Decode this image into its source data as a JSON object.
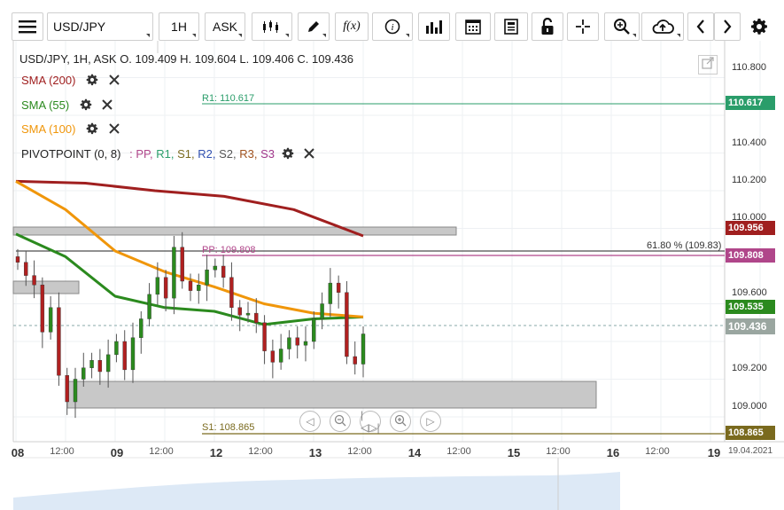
{
  "toolbar": {
    "symbol": "USD/JPY",
    "timeframe": "1H",
    "price_type": "ASK",
    "fx_label": "f(x)"
  },
  "ohlc_line": "USD/JPY, 1H, ASK   O. 109.409 H. 109.604 L. 109.406 C. 109.436",
  "indicators": {
    "sma200": {
      "label": "SMA (200)",
      "color": "#a01f1f"
    },
    "sma55": {
      "label": "SMA (55)",
      "color": "#2b8a1e"
    },
    "sma100": {
      "label": "SMA (100)",
      "color": "#f0960a"
    },
    "pivot": {
      "label": "PIVOTPOINT (0, 8)",
      "sep": ":",
      "pp": "PP,",
      "r1": "R1,",
      "s1": "S1,",
      "r2": "R2,",
      "s2": "S2,",
      "r3": "R3,",
      "s3": "S3"
    }
  },
  "levels": {
    "r1_label": "R1: 110.617",
    "pp_label": "PP: 109.808",
    "s1_label": "S1: 108.865",
    "fib_label": "61.80 % (109.83)"
  },
  "price_axis": {
    "ticks": [
      "110.800",
      "110.400",
      "110.200",
      "110.000",
      "109.600",
      "109.200",
      "109.000"
    ],
    "badges": {
      "r1": "110.617",
      "sma200": "109.956",
      "pp": "109.808",
      "sma55": "109.535",
      "last": "109.436",
      "s1": "108.865"
    }
  },
  "time_axis": {
    "labels": [
      "08",
      "12:00",
      "09",
      "12:00",
      "12",
      "12:00",
      "13",
      "12:00",
      "14",
      "12:00",
      "15",
      "12:00",
      "16",
      "12:00",
      "19",
      "19.04.2021"
    ]
  },
  "chart_data": {
    "type": "candlestick",
    "symbol": "USD/JPY",
    "timeframe": "1H",
    "ylim": [
      108.85,
      110.9
    ],
    "series": [
      {
        "name": "SMA (200)",
        "values": [
          110.25,
          110.24,
          110.2,
          110.17,
          110.1,
          109.96
        ]
      },
      {
        "name": "SMA (55)",
        "values": [
          109.97,
          109.85,
          109.64,
          109.58,
          109.56,
          109.49,
          109.52,
          109.53
        ]
      },
      {
        "name": "SMA (100)",
        "values": [
          110.25,
          110.1,
          109.88,
          109.77,
          109.69,
          109.6,
          109.55,
          109.53
        ]
      }
    ],
    "candles_close": [
      109.82,
      109.75,
      109.7,
      109.45,
      109.58,
      109.22,
      109.08,
      109.2,
      109.26,
      109.3,
      109.24,
      109.33,
      109.4,
      109.25,
      109.42,
      109.52,
      109.65,
      109.74,
      109.63,
      109.9,
      109.72,
      109.67,
      109.7,
      109.78,
      109.8,
      109.74,
      109.58,
      109.54,
      109.55,
      109.5,
      109.35,
      109.29,
      109.36,
      109.42,
      109.38,
      109.4,
      109.52,
      109.6,
      109.71,
      109.66,
      109.32,
      109.28,
      109.44
    ]
  }
}
